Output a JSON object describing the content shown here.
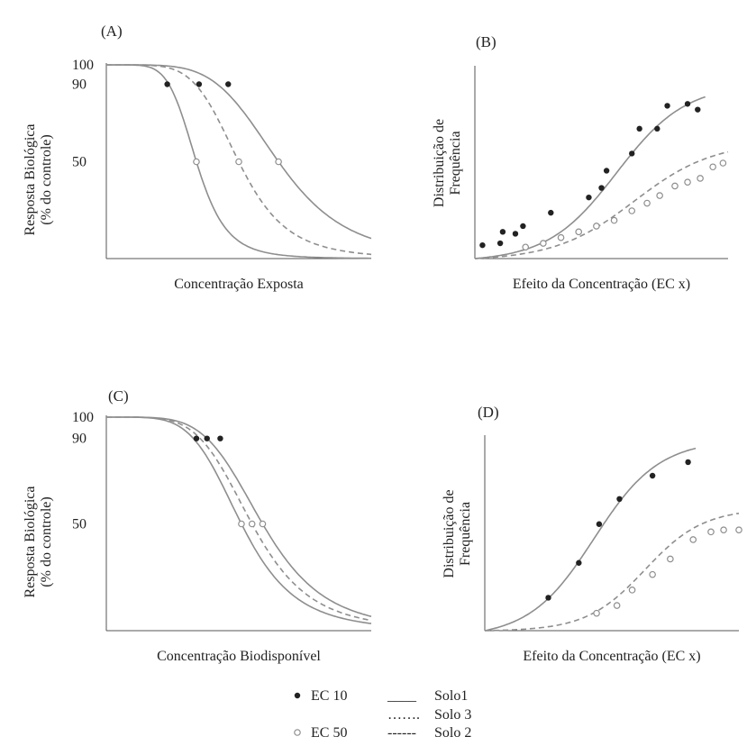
{
  "colors": {
    "curve": "#8e8e8e",
    "ink": "#222222",
    "axis": "#555555"
  },
  "legend": {
    "markers": [
      {
        "symbol": "filled-circle",
        "label": "EC 10"
      },
      {
        "symbol": "open-circle",
        "label": "EC 50"
      }
    ],
    "lines": [
      {
        "style": "solid",
        "sample": "____",
        "label": "Solo1"
      },
      {
        "style": "dotted",
        "sample": "…….",
        "label": "Solo 3"
      },
      {
        "style": "dashed",
        "sample": "------",
        "label": "Solo 2"
      }
    ]
  },
  "chart_data": [
    {
      "panel_label": "(A)",
      "type": "line",
      "xlabel": "Concentração Exposta",
      "ylabel_line1": "Resposta Biológica",
      "ylabel_line2": "(% do controle)",
      "x_range": [
        0,
        10
      ],
      "ylim": [
        0,
        100
      ],
      "y_ticks": [
        100,
        90,
        50
      ],
      "series": [
        {
          "line": "solid",
          "ec50": 3.4,
          "slope": 6.0
        },
        {
          "line": "dashed",
          "ec50": 5.0,
          "slope": 5.5
        },
        {
          "line": "solid",
          "ec50": 6.5,
          "slope": 5.0
        }
      ],
      "ec10_points": [
        {
          "x": 2.3,
          "y": 90
        },
        {
          "x": 3.5,
          "y": 90
        },
        {
          "x": 4.6,
          "y": 90
        }
      ],
      "ec50_points": [
        {
          "x": 3.4,
          "y": 50
        },
        {
          "x": 5.0,
          "y": 50
        },
        {
          "x": 6.5,
          "y": 50
        }
      ]
    },
    {
      "panel_label": "(B)",
      "type": "scatter",
      "xlabel": "Efeito da Concentração (EC x)",
      "ylabel_line1": "Distribuição de",
      "ylabel_line2": "Frequência",
      "x_range": [
        0,
        10
      ],
      "ylim": [
        0,
        100
      ],
      "series": [
        {
          "line": "solid",
          "marker": "filled",
          "top": 91,
          "mid": 5.6,
          "width": 1.35,
          "points": [
            [
              0.3,
              7
            ],
            [
              1.0,
              8
            ],
            [
              1.1,
              14
            ],
            [
              1.6,
              13
            ],
            [
              1.9,
              17
            ],
            [
              3.0,
              24
            ],
            [
              4.5,
              32
            ],
            [
              5.0,
              37
            ],
            [
              5.2,
              46
            ],
            [
              6.2,
              55
            ],
            [
              6.5,
              68
            ],
            [
              7.2,
              68
            ],
            [
              7.6,
              80
            ],
            [
              8.4,
              81
            ],
            [
              8.8,
              78
            ]
          ]
        },
        {
          "line": "dashed",
          "marker": "open",
          "top": 61,
          "mid": 6.3,
          "width": 1.55,
          "points": [
            [
              2.0,
              6
            ],
            [
              2.7,
              8
            ],
            [
              3.4,
              11
            ],
            [
              4.1,
              14
            ],
            [
              4.8,
              17
            ],
            [
              5.5,
              20
            ],
            [
              6.2,
              25
            ],
            [
              6.8,
              29
            ],
            [
              7.3,
              33
            ],
            [
              7.9,
              38
            ],
            [
              8.4,
              40
            ],
            [
              8.9,
              42
            ],
            [
              9.4,
              48
            ],
            [
              9.8,
              50
            ]
          ]
        }
      ]
    },
    {
      "panel_label": "(C)",
      "type": "line",
      "xlabel": "Concentração Biodisponível",
      "ylabel_line1": "Resposta Biológica",
      "ylabel_line2": "(% do controle)",
      "x_range": [
        0,
        10
      ],
      "ylim": [
        0,
        100
      ],
      "y_ticks": [
        100,
        90,
        50
      ],
      "series": [
        {
          "line": "solid",
          "ec50": 5.1,
          "slope": 5.0
        },
        {
          "line": "dashed",
          "ec50": 5.5,
          "slope": 5.0
        },
        {
          "line": "solid",
          "ec50": 5.9,
          "slope": 5.0
        }
      ],
      "ec10_points": [
        {
          "x": 3.4,
          "y": 90
        },
        {
          "x": 3.8,
          "y": 90
        },
        {
          "x": 4.3,
          "y": 90
        }
      ],
      "ec50_points": [
        {
          "x": 5.1,
          "y": 50
        },
        {
          "x": 5.5,
          "y": 50
        },
        {
          "x": 5.9,
          "y": 50
        }
      ]
    },
    {
      "panel_label": "(D)",
      "type": "scatter",
      "xlabel": "Efeito da Concentração (EC x)",
      "ylabel_line1": "Distribuição de",
      "ylabel_line2": "Frequência",
      "x_range": [
        0,
        10
      ],
      "ylim": [
        0,
        100
      ],
      "series": [
        {
          "line": "solid",
          "marker": "filled",
          "top": 98,
          "mid": 4.3,
          "width": 1.25,
          "points": [
            [
              2.5,
              17
            ],
            [
              3.7,
              35
            ],
            [
              4.5,
              55
            ],
            [
              5.3,
              68
            ],
            [
              6.6,
              80
            ],
            [
              8.0,
              87
            ]
          ]
        },
        {
          "line": "dashed",
          "marker": "open",
          "top": 63,
          "mid": 6.3,
          "width": 1.15,
          "points": [
            [
              4.4,
              9
            ],
            [
              5.2,
              13
            ],
            [
              5.8,
              21
            ],
            [
              6.6,
              29
            ],
            [
              7.3,
              37
            ],
            [
              8.2,
              47
            ],
            [
              8.9,
              51
            ],
            [
              9.4,
              52
            ],
            [
              10.0,
              52
            ]
          ]
        }
      ]
    }
  ]
}
